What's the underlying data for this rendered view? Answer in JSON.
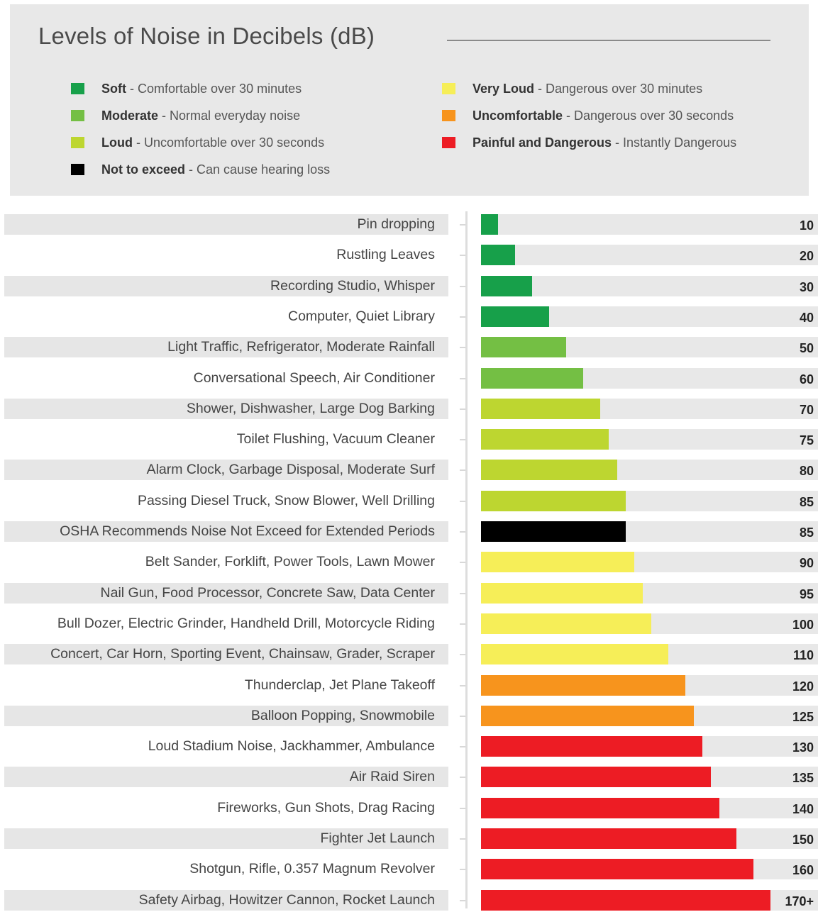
{
  "chart_data": {
    "type": "bar",
    "orientation": "horizontal",
    "title": "Levels of Noise in Decibels (dB)",
    "legend": [
      {
        "key": "soft",
        "name": "Soft",
        "description": "Comfortable over 30 minutes",
        "color": "#17a04a"
      },
      {
        "key": "moderate",
        "name": "Moderate",
        "description": "Normal everyday noise",
        "color": "#74bf44"
      },
      {
        "key": "loud",
        "name": "Loud",
        "description": "Uncomfortable over 30 seconds",
        "color": "#bdd630"
      },
      {
        "key": "not_exceed",
        "name": "Not to exceed",
        "description": "Can cause hearing loss",
        "color": "#000000"
      },
      {
        "key": "very_loud",
        "name": "Very Loud",
        "description": "Dangerous over 30 minutes",
        "color": "#f6ee58"
      },
      {
        "key": "uncomfortable",
        "name": "Uncomfortable",
        "description": "Dangerous over 30 seconds",
        "color": "#f7941d"
      },
      {
        "key": "painful",
        "name": "Painful and Dangerous",
        "description": "Instantly Dangerous",
        "color": "#ed1c24"
      }
    ],
    "rows": [
      {
        "label": "Pin dropping",
        "value": 10,
        "display": "10",
        "category": "soft"
      },
      {
        "label": "Rustling Leaves",
        "value": 20,
        "display": "20",
        "category": "soft"
      },
      {
        "label": "Recording Studio, Whisper",
        "value": 30,
        "display": "30",
        "category": "soft"
      },
      {
        "label": "Computer, Quiet Library",
        "value": 40,
        "display": "40",
        "category": "soft"
      },
      {
        "label": "Light Traffic, Refrigerator, Moderate Rainfall",
        "value": 50,
        "display": "50",
        "category": "moderate"
      },
      {
        "label": "Conversational Speech, Air Conditioner",
        "value": 60,
        "display": "60",
        "category": "moderate"
      },
      {
        "label": "Shower, Dishwasher, Large Dog Barking",
        "value": 70,
        "display": "70",
        "category": "loud"
      },
      {
        "label": "Toilet Flushing, Vacuum Cleaner",
        "value": 75,
        "display": "75",
        "category": "loud"
      },
      {
        "label": "Alarm Clock, Garbage Disposal, Moderate Surf",
        "value": 80,
        "display": "80",
        "category": "loud"
      },
      {
        "label": "Passing Diesel Truck, Snow Blower, Well Drilling",
        "value": 85,
        "display": "85",
        "category": "loud"
      },
      {
        "label": "OSHA Recommends Noise Not Exceed for Extended Periods",
        "value": 85,
        "display": "85",
        "category": "not_exceed"
      },
      {
        "label": "Belt Sander, Forklift, Power Tools, Lawn Mower",
        "value": 90,
        "display": "90",
        "category": "very_loud"
      },
      {
        "label": "Nail Gun, Food Processor, Concrete Saw, Data Center",
        "value": 95,
        "display": "95",
        "category": "very_loud"
      },
      {
        "label": "Bull Dozer, Electric Grinder, Handheld Drill, Motorcycle Riding",
        "value": 100,
        "display": "100",
        "category": "very_loud"
      },
      {
        "label": "Concert, Car Horn, Sporting Event, Chainsaw, Grader, Scraper",
        "value": 110,
        "display": "110",
        "category": "very_loud"
      },
      {
        "label": "Thunderclap, Jet Plane Takeoff",
        "value": 120,
        "display": "120",
        "category": "uncomfortable"
      },
      {
        "label": "Balloon Popping, Snowmobile",
        "value": 125,
        "display": "125",
        "category": "uncomfortable"
      },
      {
        "label": "Loud Stadium Noise, Jackhammer, Ambulance",
        "value": 130,
        "display": "130",
        "category": "painful"
      },
      {
        "label": "Air Raid Siren",
        "value": 135,
        "display": "135",
        "category": "painful"
      },
      {
        "label": "Fireworks, Gun Shots, Drag Racing",
        "value": 140,
        "display": "140",
        "category": "painful"
      },
      {
        "label": "Fighter Jet Launch",
        "value": 150,
        "display": "150",
        "category": "painful"
      },
      {
        "label": "Shotgun, Rifle, 0.357 Magnum Revolver",
        "value": 160,
        "display": "160",
        "category": "painful"
      },
      {
        "label": "Safety Airbag, Howitzer Cannon, Rocket Launch",
        "value": 170,
        "display": "170+",
        "category": "painful"
      }
    ],
    "xlim": [
      0,
      170
    ],
    "grid": false,
    "legend_position": "top"
  }
}
